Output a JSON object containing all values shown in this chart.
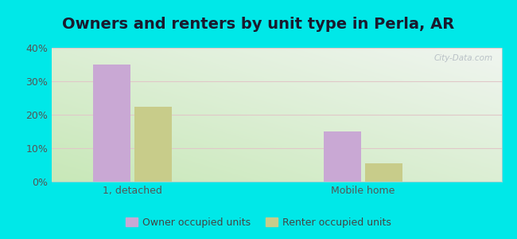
{
  "title": "Owners and renters by unit type in Perla, AR",
  "categories": [
    "1, detached",
    "Mobile home"
  ],
  "owner_values": [
    35.0,
    15.0
  ],
  "renter_values": [
    22.5,
    5.5
  ],
  "owner_color": "#c9a8d4",
  "renter_color": "#c8cc8a",
  "ylim": [
    0,
    40
  ],
  "yticks": [
    0,
    10,
    20,
    30,
    40
  ],
  "ytick_labels": [
    "0%",
    "10%",
    "20%",
    "30%",
    "40%"
  ],
  "legend_labels": [
    "Owner occupied units",
    "Renter occupied units"
  ],
  "bar_width": 0.32,
  "group_positions": [
    1.0,
    3.0
  ],
  "outer_bg": "#00e8e8",
  "plot_bg_topleft": "#c8e8b8",
  "plot_bg_bottomright": "#f0f5f0",
  "watermark": "City-Data.com",
  "title_fontsize": 14,
  "tick_fontsize": 9,
  "legend_fontsize": 9,
  "title_color": "#1a1a2e",
  "tick_color": "#555555",
  "grid_color": "#e0c8c8",
  "xlim": [
    0.3,
    4.2
  ]
}
